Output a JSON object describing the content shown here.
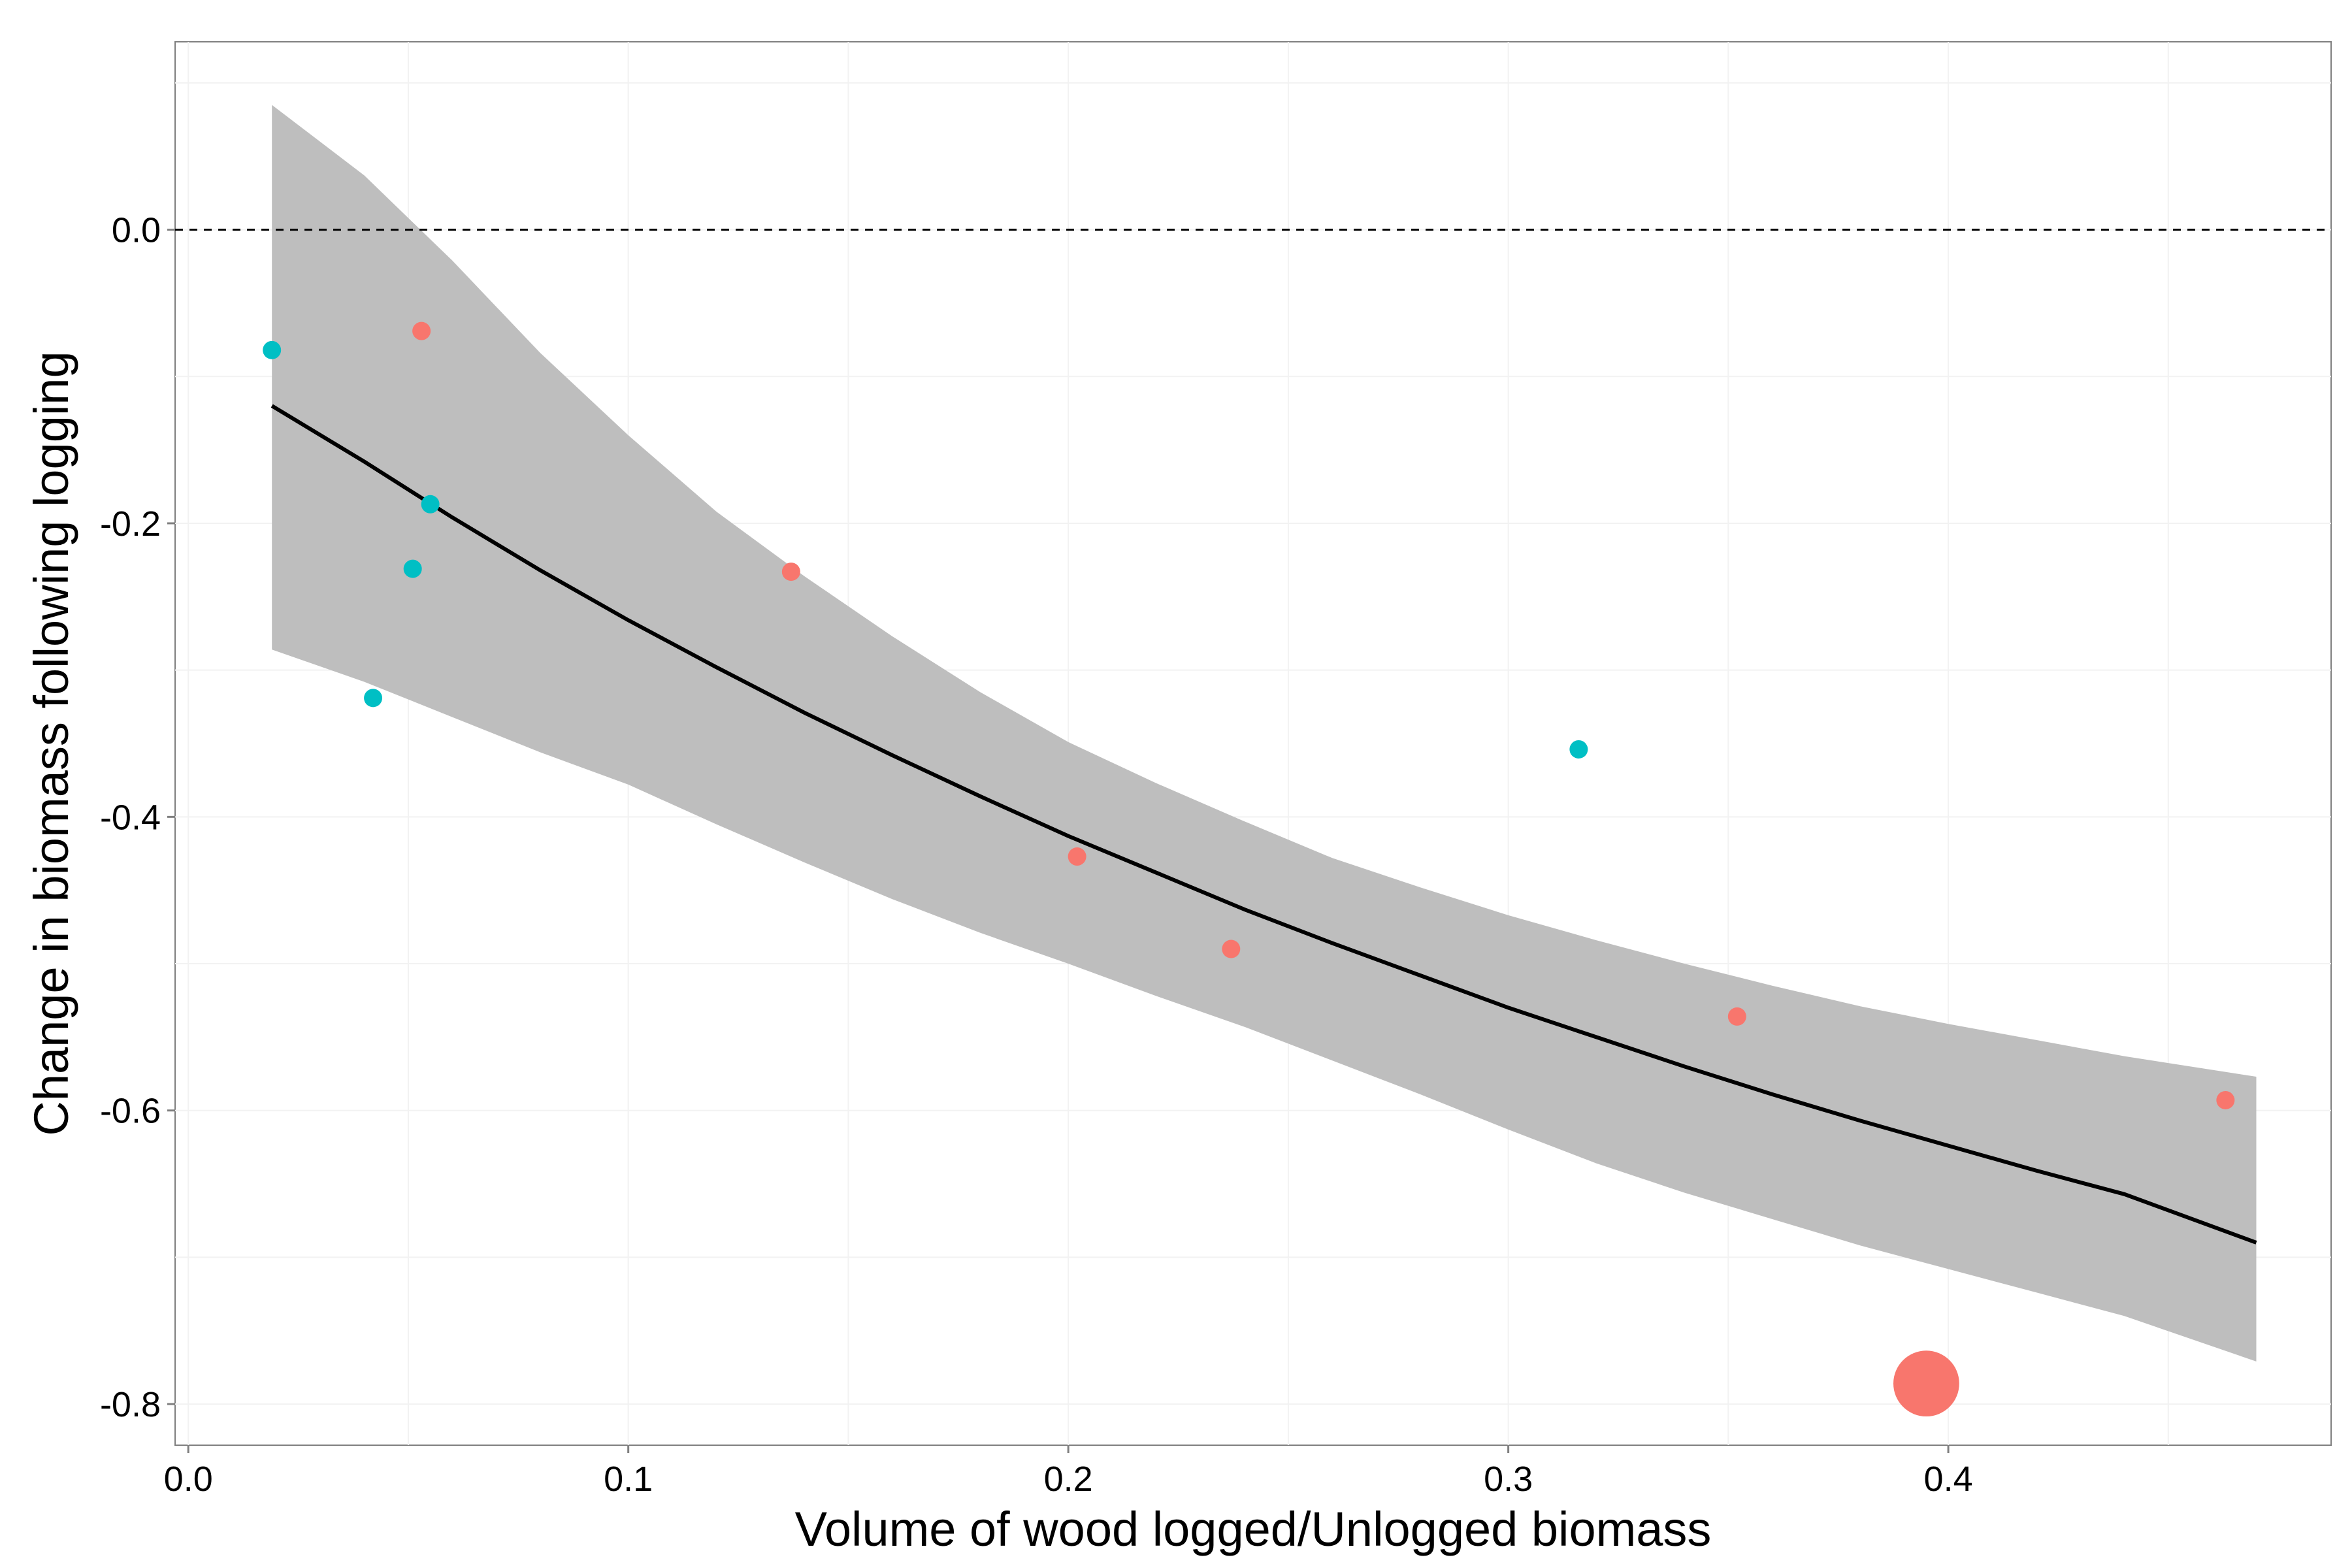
{
  "chart_data": {
    "type": "scatter",
    "title": "",
    "xlabel": "Volume of wood logged/Unlogged biomass",
    "ylabel": "Change in biomass following logging",
    "xlim": [
      -0.003,
      0.487
    ],
    "ylim": [
      -0.828,
      0.128
    ],
    "x_ticks": [
      0.0,
      0.1,
      0.2,
      0.3,
      0.4
    ],
    "x_tick_labels": [
      "0.0",
      "0.1",
      "0.2",
      "0.3",
      "0.4"
    ],
    "y_ticks": [
      0.0,
      -0.2,
      -0.4,
      -0.6,
      -0.8
    ],
    "y_tick_labels": [
      "0.0",
      "-0.2",
      "-0.4",
      "-0.6",
      "-0.8"
    ],
    "grid": true,
    "reference_line": {
      "y": 0.0,
      "style": "dashed"
    },
    "colors": {
      "group_a": "#F8766D",
      "group_b": "#00BFC4",
      "fit": "#000000",
      "ribbon": "#BEBEBE"
    },
    "series": [
      {
        "color": "#F8766D",
        "points": [
          {
            "x": 0.053,
            "y": -0.069,
            "size": 1
          },
          {
            "x": 0.137,
            "y": -0.233,
            "size": 1
          },
          {
            "x": 0.202,
            "y": -0.427,
            "size": 1
          },
          {
            "x": 0.237,
            "y": -0.49,
            "size": 1
          },
          {
            "x": 0.352,
            "y": -0.536,
            "size": 1
          },
          {
            "x": 0.395,
            "y": -0.786,
            "size": 3.6
          },
          {
            "x": 0.463,
            "y": -0.593,
            "size": 1
          }
        ]
      },
      {
        "color": "#00BFC4",
        "points": [
          {
            "x": 0.019,
            "y": -0.082,
            "size": 1
          },
          {
            "x": 0.042,
            "y": -0.319,
            "size": 1
          },
          {
            "x": 0.051,
            "y": -0.231,
            "size": 1
          },
          {
            "x": 0.055,
            "y": -0.187,
            "size": 1
          },
          {
            "x": 0.316,
            "y": -0.354,
            "size": 1
          }
        ]
      }
    ],
    "fit": {
      "type": "line",
      "x": [
        0.019,
        0.04,
        0.06,
        0.08,
        0.1,
        0.12,
        0.14,
        0.16,
        0.18,
        0.2,
        0.22,
        0.24,
        0.26,
        0.28,
        0.3,
        0.32,
        0.34,
        0.36,
        0.38,
        0.4,
        0.42,
        0.44,
        0.47
      ],
      "y": [
        -0.12,
        -0.158,
        -0.196,
        -0.232,
        -0.266,
        -0.298,
        -0.329,
        -0.358,
        -0.386,
        -0.413,
        -0.438,
        -0.463,
        -0.486,
        -0.508,
        -0.53,
        -0.55,
        -0.57,
        -0.589,
        -0.607,
        -0.624,
        -0.641,
        -0.657,
        -0.69
      ],
      "lower": [
        -0.286,
        -0.308,
        -0.332,
        -0.356,
        -0.378,
        -0.405,
        -0.431,
        -0.456,
        -0.479,
        -0.5,
        -0.522,
        -0.543,
        -0.566,
        -0.589,
        -0.613,
        -0.636,
        -0.656,
        -0.674,
        -0.692,
        -0.708,
        -0.724,
        -0.74,
        -0.771
      ],
      "upper": [
        0.085,
        0.037,
        -0.021,
        -0.084,
        -0.14,
        -0.192,
        -0.236,
        -0.277,
        -0.315,
        -0.349,
        -0.377,
        -0.403,
        -0.428,
        -0.448,
        -0.467,
        -0.484,
        -0.5,
        -0.515,
        -0.529,
        -0.541,
        -0.552,
        -0.563,
        -0.577
      ]
    }
  }
}
